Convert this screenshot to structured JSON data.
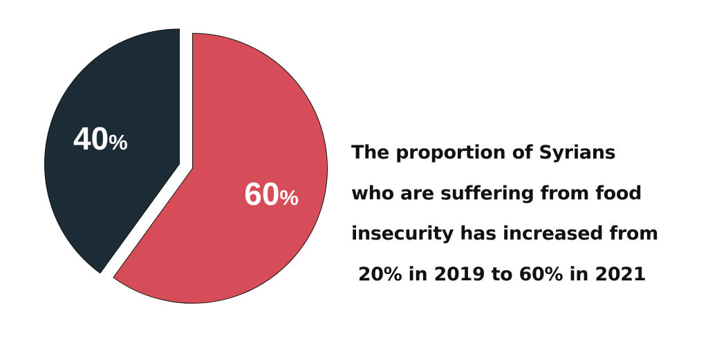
{
  "chart_data": {
    "type": "pie",
    "slices": [
      {
        "label": "60%",
        "value": 60,
        "color": "#d64c58"
      },
      {
        "label": "40%",
        "value": 40,
        "color": "#1c2c36"
      }
    ],
    "title": ""
  },
  "caption": {
    "lines": [
      "The proportion of Syrians",
      "who are suffering from food",
      "insecurity has increased from",
      "20% in 2019 to 60% in 2021"
    ]
  }
}
